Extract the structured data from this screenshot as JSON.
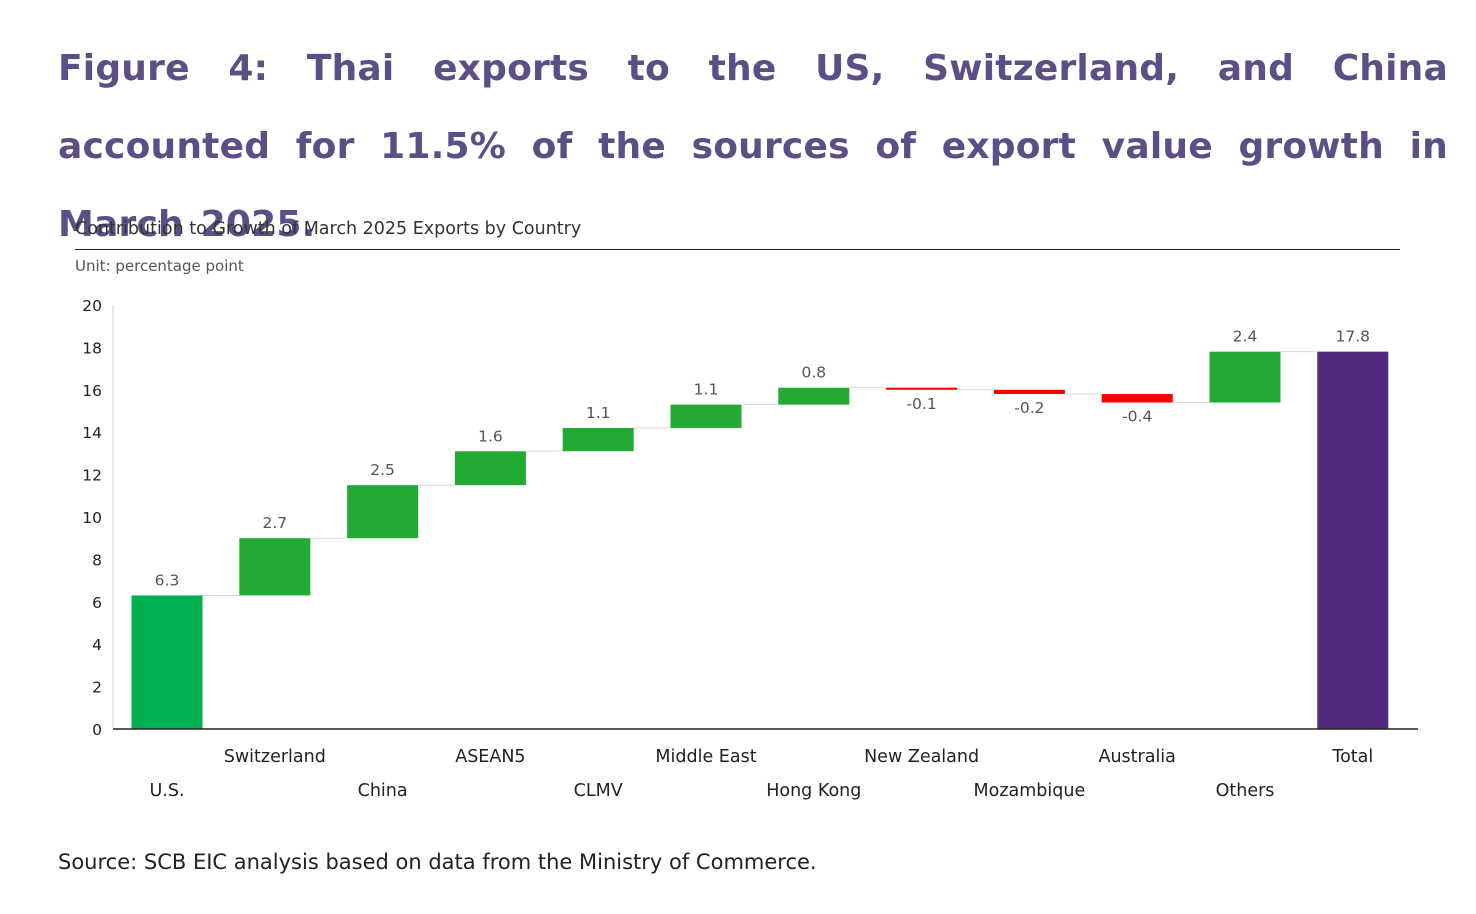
{
  "figure": {
    "title": "Figure 4: Thai exports to the US, Switzerland, and China accounted for 11.5% of the sources of export value growth in March 2025."
  },
  "source": "Source: SCB EIC analysis based on data from the Ministry of Commerce.",
  "colors": {
    "title": "#5b4f86",
    "increase_first": "#00b050",
    "increase": "#22aa35",
    "decrease": "#ff0000",
    "total": "#512a7e",
    "axis": "#222222",
    "label": "#555555"
  },
  "chart_data": {
    "type": "waterfall",
    "title": "Contribution to Growth of March 2025 Exports by Country",
    "unit": "Unit: percentage point",
    "ylim": [
      0,
      20
    ],
    "yticks": [
      0,
      2,
      4,
      6,
      8,
      10,
      12,
      14,
      16,
      18,
      20
    ],
    "categories": [
      "U.S.",
      "Switzerland",
      "China",
      "ASEAN5",
      "CLMV",
      "Middle East",
      "Hong Kong",
      "New Zealand",
      "Mozambique",
      "Australia",
      "Others",
      "Total"
    ],
    "values": [
      6.3,
      2.7,
      2.5,
      1.6,
      1.1,
      1.1,
      0.8,
      -0.1,
      -0.2,
      -0.4,
      2.4,
      17.8
    ],
    "value_labels": [
      "6.3",
      "2.7",
      "2.5",
      "1.6",
      "1.1",
      "1.1",
      "0.8",
      "-0.1",
      "-0.2",
      "-0.4",
      "2.4",
      "17.8"
    ],
    "total_index": 11
  }
}
